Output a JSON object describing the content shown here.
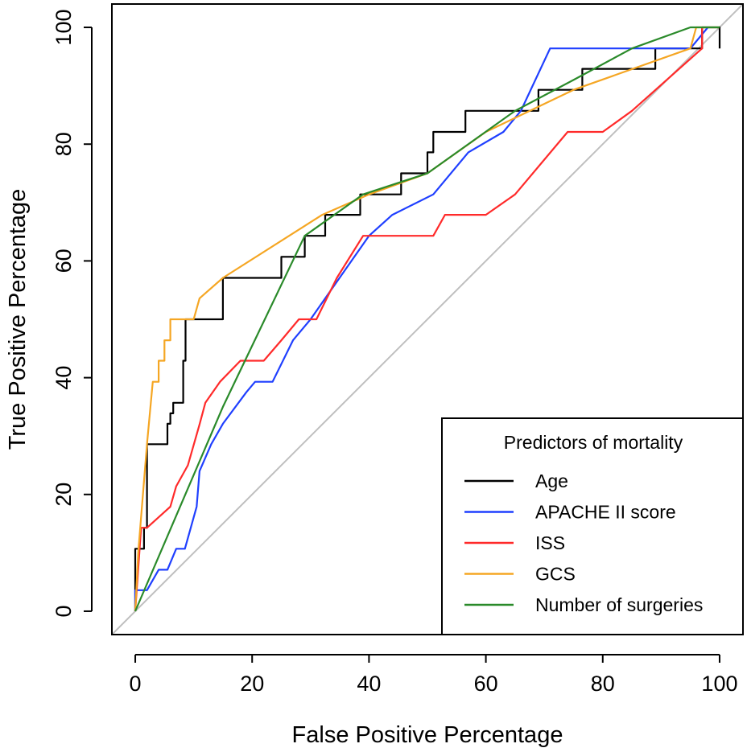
{
  "chart_data": {
    "type": "line",
    "title": "",
    "xlabel": "False Positive Percentage",
    "ylabel": "True Positive Percentage",
    "xlim": [
      -4,
      104
    ],
    "ylim": [
      -4,
      104
    ],
    "x_ticks": [
      "0",
      "20",
      "40",
      "60",
      "80",
      "100"
    ],
    "y_ticks": [
      "0",
      "20",
      "40",
      "60",
      "80",
      "100"
    ],
    "grid": false,
    "legend": {
      "title": "Predictors of mortality",
      "position": "bottom-right"
    },
    "reference_line": {
      "from": [
        -4,
        -4
      ],
      "to": [
        104,
        104
      ],
      "color": "#bfbfbf"
    },
    "series": [
      {
        "name": "Age",
        "color": "#000000",
        "points": [
          [
            0,
            0
          ],
          [
            0,
            10.7
          ],
          [
            1.5,
            10.7
          ],
          [
            1.5,
            14.3
          ],
          [
            2,
            14.3
          ],
          [
            2,
            28.6
          ],
          [
            5.5,
            28.6
          ],
          [
            5.5,
            32.1
          ],
          [
            6,
            32.1
          ],
          [
            6,
            33.9
          ],
          [
            6.5,
            33.9
          ],
          [
            6.5,
            35.7
          ],
          [
            8.2,
            35.7
          ],
          [
            8.2,
            42.9
          ],
          [
            8.6,
            42.9
          ],
          [
            8.6,
            50
          ],
          [
            15,
            50
          ],
          [
            15,
            57.1
          ],
          [
            25,
            57.1
          ],
          [
            25,
            60.7
          ],
          [
            29,
            60.7
          ],
          [
            29,
            64.3
          ],
          [
            32.5,
            64.3
          ],
          [
            32.5,
            67.9
          ],
          [
            38.5,
            67.9
          ],
          [
            38.5,
            71.4
          ],
          [
            45.5,
            71.4
          ],
          [
            45.5,
            75
          ],
          [
            50,
            75
          ],
          [
            50,
            78.6
          ],
          [
            51,
            78.6
          ],
          [
            51,
            82.1
          ],
          [
            56.5,
            82.1
          ],
          [
            56.5,
            85.7
          ],
          [
            69,
            85.7
          ],
          [
            69,
            89.3
          ],
          [
            76.5,
            89.3
          ],
          [
            76.5,
            92.9
          ],
          [
            89,
            92.9
          ],
          [
            89,
            96.4
          ],
          [
            97,
            96.4
          ],
          [
            97,
            100
          ],
          [
            100,
            100
          ],
          [
            100,
            96.4
          ]
        ]
      },
      {
        "name": "APACHE II score",
        "color": "#1f3fff",
        "points": [
          [
            0,
            0
          ],
          [
            0,
            3.6
          ],
          [
            2,
            3.6
          ],
          [
            4,
            7.1
          ],
          [
            5.5,
            7.1
          ],
          [
            7,
            10.7
          ],
          [
            8.5,
            10.7
          ],
          [
            10.5,
            17.9
          ],
          [
            11,
            24
          ],
          [
            13,
            28.6
          ],
          [
            15,
            32.1
          ],
          [
            19,
            37.5
          ],
          [
            20.5,
            39.3
          ],
          [
            23.5,
            39.3
          ],
          [
            27,
            46.4
          ],
          [
            30,
            50
          ],
          [
            40,
            64.3
          ],
          [
            44,
            67.9
          ],
          [
            51,
            71.4
          ],
          [
            57,
            78.6
          ],
          [
            63,
            82.1
          ],
          [
            66,
            85.7
          ],
          [
            71,
            96.4
          ],
          [
            95,
            96.4
          ],
          [
            98,
            100
          ]
        ]
      },
      {
        "name": "ISS",
        "color": "#ff2a2a",
        "points": [
          [
            0,
            0
          ],
          [
            1,
            14.3
          ],
          [
            2,
            14.3
          ],
          [
            6,
            17.9
          ],
          [
            7,
            21.4
          ],
          [
            9,
            25
          ],
          [
            11,
            32
          ],
          [
            12,
            35.7
          ],
          [
            14.5,
            39.3
          ],
          [
            18,
            42.9
          ],
          [
            22,
            42.9
          ],
          [
            25,
            46.4
          ],
          [
            28,
            50
          ],
          [
            31,
            50
          ],
          [
            34.5,
            57.1
          ],
          [
            39,
            64.3
          ],
          [
            51,
            64.3
          ],
          [
            53,
            67.9
          ],
          [
            60,
            67.9
          ],
          [
            65,
            71.4
          ],
          [
            74,
            82.1
          ],
          [
            80,
            82.1
          ],
          [
            85,
            85.7
          ],
          [
            97,
            96.4
          ],
          [
            97,
            100
          ]
        ]
      },
      {
        "name": "GCS",
        "color": "#f5a623",
        "points": [
          [
            0,
            0
          ],
          [
            0.5,
            10
          ],
          [
            2,
            28.6
          ],
          [
            3,
            39.3
          ],
          [
            4,
            39.3
          ],
          [
            4,
            42.9
          ],
          [
            5,
            42.9
          ],
          [
            5,
            46.4
          ],
          [
            6,
            46.4
          ],
          [
            6,
            50
          ],
          [
            10,
            50
          ],
          [
            11,
            53.6
          ],
          [
            15,
            57.1
          ],
          [
            32,
            67.9
          ],
          [
            40,
            71.4
          ],
          [
            50,
            75
          ],
          [
            60,
            82.1
          ],
          [
            75,
            89.3
          ],
          [
            95,
            96.4
          ],
          [
            96,
            100
          ],
          [
            100,
            100
          ]
        ]
      },
      {
        "name": "Number of surgeries",
        "color": "#2a8a2a",
        "points": [
          [
            0,
            0
          ],
          [
            15,
            35
          ],
          [
            29,
            64.3
          ],
          [
            39,
            71.4
          ],
          [
            50,
            75
          ],
          [
            65,
            85.7
          ],
          [
            75,
            91
          ],
          [
            85,
            96.4
          ],
          [
            95,
            100
          ],
          [
            100,
            100
          ]
        ]
      }
    ]
  }
}
